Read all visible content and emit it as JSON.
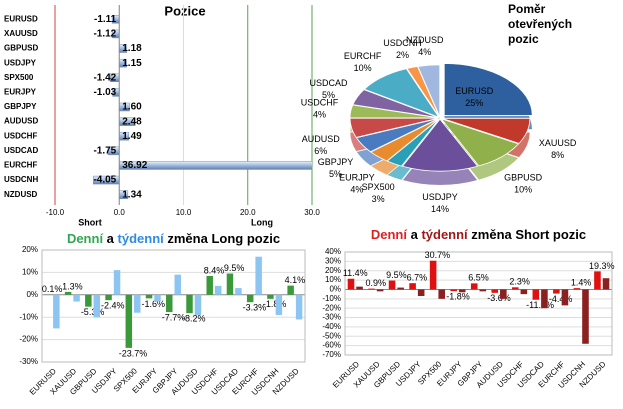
{
  "chart_data": [
    {
      "type": "hbar",
      "title": "Pozice",
      "categories": [
        "EURUSD",
        "XAUUSD",
        "GBPUSD",
        "USDJPY",
        "SPX500",
        "EURJPY",
        "GBPJPY",
        "AUDUSD",
        "USDCHF",
        "USDCAD",
        "EURCHF",
        "USDCNH",
        "NZDUSD"
      ],
      "values": [
        -1.11,
        -1.12,
        1.18,
        1.15,
        -1.42,
        -1.03,
        1.6,
        2.48,
        1.49,
        -1.75,
        36.92,
        -4.05,
        1.34
      ],
      "value_labels": [
        "-1.11",
        "-1.12",
        "1.18",
        "1.15",
        "-1.42",
        "-1.03",
        "1.60",
        "2.48",
        "1.49",
        "-1.75",
        "36.92",
        "-4.05",
        "1.34"
      ],
      "color": "#9fb8dc",
      "xlim": [
        -10,
        30
      ],
      "xticks": [
        {
          "value": -10,
          "label": "-10.0"
        },
        {
          "value": 0,
          "label": "0.0"
        },
        {
          "value": 10,
          "label": "10.0"
        },
        {
          "value": 20,
          "label": "20.0"
        },
        {
          "value": 30,
          "label": "30.0"
        }
      ],
      "annotations": [
        "Short",
        "Long"
      ],
      "grid": true
    },
    {
      "type": "pie",
      "title": [
        "Poměr",
        "otevřených",
        "pozic"
      ],
      "categories": [
        "EURUSD",
        "XAUUSD",
        "GBPUSD",
        "USDJPY",
        "SPX500",
        "EURJPY",
        "GBPJPY",
        "AUDUSD",
        "USDCHF",
        "USDCAD",
        "EURCHF",
        "USDCNH",
        "NZDUSD"
      ],
      "values": [
        25,
        8,
        10,
        14,
        3,
        4,
        5,
        6,
        4,
        5,
        10,
        2,
        4
      ],
      "value_labels": [
        "25%",
        "8%",
        "10%",
        "14%",
        "3%",
        "4%",
        "5%",
        "6%",
        "4%",
        "5%",
        "10%",
        "2%",
        "4%"
      ],
      "colors": [
        "#2e5f9e",
        "#c0392b",
        "#8fb04a",
        "#6b4f9a",
        "#2aa0b8",
        "#e88a2e",
        "#4a7bc0",
        "#c84a48",
        "#9bbb59",
        "#8064a2",
        "#4bacc6",
        "#f79646",
        "#a0b8e0"
      ]
    },
    {
      "type": "bar",
      "title": [
        "Denní",
        " a ",
        "týdenní",
        " změna Long pozic"
      ],
      "title_colors": [
        "#2fa84f",
        "#000000",
        "#2e8ae6",
        "#000000"
      ],
      "categories": [
        "EURUSD",
        "XAUUSD",
        "GBPUSD",
        "USDJPY",
        "SPX500",
        "EURJPY",
        "GBPJPY",
        "AUDUSD",
        "USDCHF",
        "USDCAD",
        "EURCHF",
        "USDCNH",
        "NZDUSD"
      ],
      "series": [
        {
          "color": "#3a9a3a",
          "values": [
            0.1,
            1.3,
            -5.3,
            -2.4,
            -23.7,
            -1.6,
            -7.7,
            -8.2,
            8.4,
            9.5,
            -3.3,
            -1.8,
            4.1
          ],
          "value_labels": [
            "0.1%",
            "1.3%",
            "-5.3%",
            "-2.4%",
            "-23.7%",
            "-1.6%",
            "-7.7%",
            "-8.2%",
            "8.4%",
            "9.5%",
            "-3.3%",
            "-1.8%",
            "4.1%"
          ]
        },
        {
          "color": "#8cc4f2",
          "values": [
            -15,
            -3,
            -10,
            11,
            -8,
            -3,
            9,
            -9,
            4,
            3,
            17,
            -9,
            -11
          ]
        }
      ],
      "ylim": [
        -30,
        20
      ],
      "yticks": [
        {
          "value": -30,
          "label": "-30%"
        },
        {
          "value": -20,
          "label": "-20%"
        },
        {
          "value": -10,
          "label": "-10%"
        },
        {
          "value": 0,
          "label": "0%"
        },
        {
          "value": 10,
          "label": "10%"
        },
        {
          "value": 20,
          "label": "20%"
        }
      ],
      "grid": true
    },
    {
      "type": "bar",
      "title": [
        "Denní",
        " a ",
        "týdenní",
        " změna Short pozic"
      ],
      "title_colors": [
        "#e02020",
        "#000000",
        "#a01818",
        "#000000"
      ],
      "categories": [
        "EURUSD",
        "XAUUSD",
        "GBPUSD",
        "USDJPY",
        "SPX500",
        "EURJPY",
        "GBPJPY",
        "AUDUSD",
        "USDCHF",
        "USDCAD",
        "EURCHF",
        "USDCNH",
        "NZDUSD"
      ],
      "series": [
        {
          "color": "#e01010",
          "values": [
            11.4,
            0.9,
            9.5,
            6.7,
            30.7,
            -1.8,
            6.5,
            -3.6,
            2.3,
            -11.0,
            -4.4,
            1.4,
            19.3
          ],
          "value_labels": [
            "11.4%",
            "0.9%",
            "9.5%",
            "6.7%",
            "30.7%",
            "-1.8%",
            "6.5%",
            "-3.6%",
            "2.3%",
            "-11.0%",
            "-4.4%",
            "1.4%",
            "19.3%"
          ]
        },
        {
          "color": "#8a2020",
          "values": [
            3,
            -2,
            2,
            -7,
            -10,
            -3,
            -2,
            -10,
            -5,
            -20,
            -17,
            -58,
            12
          ]
        }
      ],
      "ylim": [
        -70,
        40
      ],
      "yticks": [
        {
          "value": -70,
          "label": "-70%"
        },
        {
          "value": -60,
          "label": "-60%"
        },
        {
          "value": -50,
          "label": "-50%"
        },
        {
          "value": -40,
          "label": "-40%"
        },
        {
          "value": -30,
          "label": "-30%"
        },
        {
          "value": -20,
          "label": "-20%"
        },
        {
          "value": -10,
          "label": "-10%"
        },
        {
          "value": 0,
          "label": "0%"
        },
        {
          "value": 10,
          "label": "10%"
        },
        {
          "value": 20,
          "label": "20%"
        },
        {
          "value": 30,
          "label": "30%"
        },
        {
          "value": 40,
          "label": "40%"
        }
      ],
      "grid": true
    }
  ]
}
